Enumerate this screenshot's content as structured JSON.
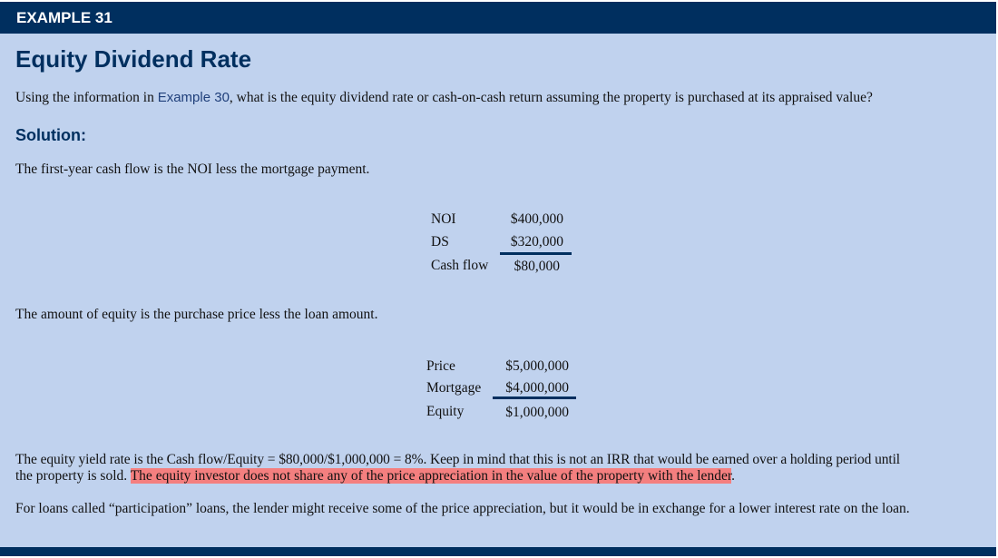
{
  "header": {
    "label": "EXAMPLE 31"
  },
  "title": "Equity Dividend Rate",
  "question": {
    "before": "Using the information in ",
    "link": "Example 30",
    "after": ", what is the equity dividend rate or cash-on-cash return assuming the property is purchased at its appraised value?"
  },
  "solution_label": "Solution:",
  "line1": "The first-year cash flow is the NOI less the mortgage payment.",
  "table1": [
    {
      "label": "NOI",
      "value": "$400,000"
    },
    {
      "label": "DS",
      "value": "$320,000"
    },
    {
      "label": "Cash flow",
      "value": "$80,000"
    }
  ],
  "line2": "The amount of equity is the purchase price less the loan amount.",
  "table2": [
    {
      "label": "Price",
      "value": "$5,000,000"
    },
    {
      "label": "Mortgage",
      "value": "$4,000,000"
    },
    {
      "label": "Equity",
      "value": "$1,000,000"
    }
  ],
  "para1": {
    "line1": "The equity yield rate is the Cash flow/Equity = $80,000/$1,000,000 = 8%. Keep in mind that this is not an IRR that would be earned over a holding period until",
    "line2_start": "the property is sold. ",
    "highlight": "The equity investor does not share any of the price appreciation in the value of the property with the lender",
    "line2_end": "."
  },
  "para2": "For loans called “participation” loans, the lender might receive some of the price appreciation, but it would be in exchange for a lower interest rate on the loan.",
  "colors": {
    "header": "#002f5f",
    "background": "#c0d2ee",
    "highlight": "#f47f7f"
  }
}
